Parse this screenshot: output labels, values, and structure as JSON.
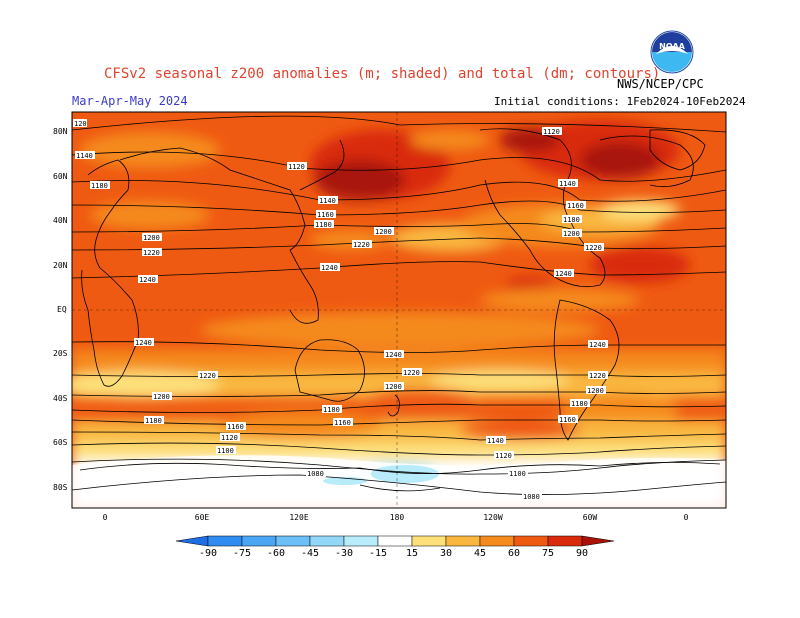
{
  "header": {
    "title": "CFSv2 seasonal z200 anomalies (m; shaded) and total (dm; contours)",
    "season": "Mar-Apr-May 2024",
    "initial_conditions": "Initial conditions: 1Feb2024-10Feb2024",
    "agency": "NWS/NCEP/CPC",
    "logo_text": "NOAA"
  },
  "axes": {
    "lat_labels": [
      "80N",
      "60N",
      "40N",
      "20N",
      "EQ",
      "20S",
      "40S",
      "60S",
      "80S"
    ],
    "lon_labels": [
      "0",
      "60E",
      "120E",
      "180",
      "120W",
      "60W",
      "0"
    ]
  },
  "colorbar": {
    "labels": [
      "-90",
      "-75",
      "-60",
      "-45",
      "-30",
      "-15",
      "15",
      "30",
      "45",
      "60",
      "75",
      "90"
    ],
    "colors": [
      "#1e6ee6",
      "#2f8cf0",
      "#4aa6f5",
      "#6cbff7",
      "#92d7f8",
      "#b8ecfa",
      "#ffffff",
      "#fde07a",
      "#f9b740",
      "#f58a1e",
      "#ef5a12",
      "#d92a0c",
      "#a81208"
    ]
  },
  "contour_labels": [
    {
      "text": "1120"
    },
    {
      "text": "1140"
    },
    {
      "text": "1160"
    },
    {
      "text": "1180"
    },
    {
      "text": "1200"
    },
    {
      "text": "1220"
    },
    {
      "text": "1240"
    },
    {
      "text": "1080"
    },
    {
      "text": "1100"
    }
  ]
}
